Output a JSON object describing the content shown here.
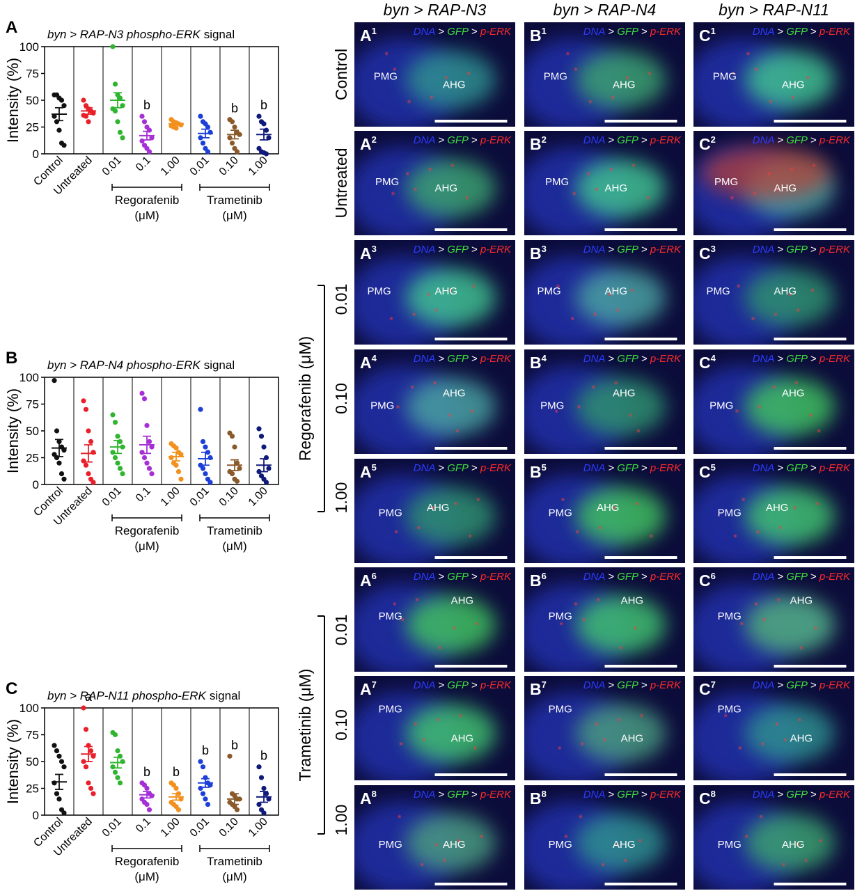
{
  "chart_data": [
    {
      "type": "dot",
      "panel": "A",
      "title": {
        "italic": "byn > RAP-N3 phospho-ERK",
        "plain": "signal"
      },
      "ylabel": "Intensity (%)",
      "categories": [
        "Control",
        "Untreated",
        "0.01",
        "0.1",
        "1.00",
        "0.01",
        "0.10",
        "1.00"
      ],
      "colors": [
        "#111111",
        "#e8202a",
        "#2fb52f",
        "#a630d6",
        "#f2911e",
        "#1c3fd8",
        "#8a5a2b",
        "#101a7a"
      ],
      "values": [
        [
          55,
          55,
          52,
          50,
          45,
          35,
          30,
          22,
          10,
          8
        ],
        [
          50,
          45,
          42,
          40,
          38,
          36,
          35,
          30
        ],
        [
          100,
          65,
          55,
          52,
          45,
          42,
          40,
          30,
          20,
          15
        ],
        [
          35,
          30,
          25,
          22,
          15,
          12,
          8,
          5,
          2
        ],
        [
          32,
          30,
          29,
          28,
          27,
          26,
          25,
          24
        ],
        [
          35,
          30,
          28,
          25,
          20,
          15,
          10,
          5,
          2
        ],
        [
          32,
          30,
          25,
          20,
          18,
          15,
          10,
          5,
          2
        ],
        [
          35,
          30,
          28,
          22,
          15,
          5,
          2,
          1,
          0
        ]
      ],
      "means": [
        37,
        40,
        50,
        17,
        28,
        19,
        18,
        18
      ],
      "sems": [
        6,
        3,
        7,
        4,
        1,
        4,
        4,
        5
      ],
      "annotations": [
        null,
        null,
        null,
        "b",
        null,
        null,
        "b",
        "b"
      ],
      "group_labels": [
        "Regorafenib",
        "Trametinib"
      ],
      "group_unit": "(μM)",
      "ylim": [
        0,
        100
      ],
      "yticks": [
        0,
        25,
        50,
        75,
        100
      ]
    },
    {
      "type": "dot",
      "panel": "B",
      "title": {
        "italic": "byn > RAP-N4 phospho-ERK",
        "plain": "signal"
      },
      "ylabel": "Intensity (%)",
      "categories": [
        "Control",
        "Untreated",
        "0.01",
        "0.1",
        "1.00",
        "0.01",
        "0.10",
        "1.00"
      ],
      "colors": [
        "#111111",
        "#e8202a",
        "#2fb52f",
        "#a630d6",
        "#f2911e",
        "#1c3fd8",
        "#8a5a2b",
        "#101a7a"
      ],
      "values": [
        [
          97,
          50,
          40,
          35,
          32,
          28,
          25,
          20,
          10,
          5
        ],
        [
          78,
          70,
          50,
          40,
          30,
          22,
          18,
          10,
          5,
          2
        ],
        [
          65,
          58,
          45,
          40,
          35,
          30,
          25,
          20,
          15,
          10
        ],
        [
          85,
          80,
          55,
          40,
          35,
          30,
          25,
          20,
          15,
          10
        ],
        [
          38,
          36,
          34,
          30,
          28,
          25,
          20,
          18,
          12,
          5
        ],
        [
          70,
          40,
          35,
          30,
          25,
          18,
          15,
          10,
          5,
          2
        ],
        [
          48,
          45,
          35,
          20,
          15,
          12,
          10,
          5,
          3
        ],
        [
          52,
          45,
          35,
          25,
          15,
          12,
          8,
          5,
          2
        ]
      ],
      "means": [
        34,
        29,
        35,
        37,
        26,
        24,
        18,
        18
      ],
      "sems": [
        8,
        8,
        6,
        8,
        4,
        6,
        5,
        6
      ],
      "annotations": [
        null,
        null,
        null,
        null,
        null,
        null,
        null,
        null
      ],
      "group_labels": [
        "Regorafenib",
        "Trametinib"
      ],
      "group_unit": "(μM)",
      "ylim": [
        0,
        100
      ],
      "yticks": [
        0,
        25,
        50,
        75,
        100
      ]
    },
    {
      "type": "dot",
      "panel": "C",
      "title": {
        "italic": "byn > RAP-N11 phospho-ERK",
        "plain": "signal"
      },
      "ylabel": "Intensity (%)",
      "categories": [
        "Control",
        "Untreated",
        "0.01",
        "0.1",
        "1.00",
        "0.01",
        "0.10",
        "1.00"
      ],
      "colors": [
        "#111111",
        "#e8202a",
        "#2fb52f",
        "#a630d6",
        "#f2911e",
        "#1c3fd8",
        "#8a5a2b",
        "#101a7a"
      ],
      "values": [
        [
          65,
          60,
          55,
          50,
          45,
          30,
          20,
          15,
          5,
          2
        ],
        [
          100,
          80,
          65,
          60,
          55,
          50,
          45,
          30,
          25,
          20
        ],
        [
          77,
          75,
          60,
          55,
          50,
          45,
          40,
          35,
          30
        ],
        [
          30,
          28,
          25,
          20,
          18,
          15,
          12,
          10,
          5
        ],
        [
          30,
          28,
          25,
          20,
          15,
          12,
          10,
          8,
          5
        ],
        [
          50,
          45,
          35,
          30,
          28,
          25,
          20,
          15,
          10
        ],
        [
          55,
          20,
          18,
          15,
          15,
          12,
          10,
          8,
          5
        ],
        [
          45,
          35,
          25,
          20,
          15,
          10,
          5,
          2
        ]
      ],
      "means": [
        31,
        57,
        49,
        19,
        17,
        30,
        15,
        17
      ],
      "sems": [
        7,
        7,
        5,
        3,
        3,
        4,
        5,
        5
      ],
      "annotations": [
        null,
        "a",
        null,
        "b",
        "b",
        "b",
        "b",
        "b"
      ],
      "group_labels": [
        "Regorafenib",
        "Trametinib"
      ],
      "group_unit": "(μM)",
      "ylim": [
        0,
        100
      ],
      "yticks": [
        0,
        25,
        50,
        75,
        100
      ]
    }
  ],
  "column_headers": [
    "byn > RAP-N3",
    "byn > RAP-N4",
    "byn > RAP-N11"
  ],
  "row_labels": [
    "Control",
    "Untreated"
  ],
  "regorafenib": {
    "label": "Regorafenib (μM)",
    "doses": [
      "0.01",
      "0.10",
      "1.00"
    ]
  },
  "trametinib": {
    "label": "Trametinib (μM)",
    "doses": [
      "0.01",
      "0.10",
      "1.00"
    ]
  },
  "channel_legend": {
    "dna": "DNA",
    "sep": ">",
    "gfp": "GFP",
    "perk": "p-ERK"
  },
  "panels": [
    [
      {
        "id": "A",
        "sup": "1",
        "labels": [
          "PMG",
          "AHG"
        ]
      },
      {
        "id": "B",
        "sup": "1",
        "labels": [
          "PMG",
          "AHG"
        ]
      },
      {
        "id": "C",
        "sup": "1",
        "labels": [
          "PMG",
          "AHG"
        ]
      }
    ],
    [
      {
        "id": "A",
        "sup": "2",
        "labels": [
          "PMG",
          "AHG"
        ]
      },
      {
        "id": "B",
        "sup": "2",
        "labels": [
          "PMG",
          "AHG"
        ]
      },
      {
        "id": "C",
        "sup": "2",
        "labels": [
          "PMG",
          "AHG"
        ]
      }
    ],
    [
      {
        "id": "A",
        "sup": "3",
        "labels": [
          "PMG",
          "AHG"
        ]
      },
      {
        "id": "B",
        "sup": "3",
        "labels": [
          "PMG",
          "AHG"
        ]
      },
      {
        "id": "C",
        "sup": "3",
        "labels": [
          "PMG",
          "AHG"
        ]
      }
    ],
    [
      {
        "id": "A",
        "sup": "4",
        "labels": [
          "PMG",
          "AHG"
        ]
      },
      {
        "id": "B",
        "sup": "4",
        "labels": [
          "PMG",
          "AHG"
        ]
      },
      {
        "id": "C",
        "sup": "4",
        "labels": [
          "PMG",
          "AHG"
        ]
      }
    ],
    [
      {
        "id": "A",
        "sup": "5",
        "labels": [
          "PMG",
          "AHG"
        ]
      },
      {
        "id": "B",
        "sup": "5",
        "labels": [
          "PMG",
          "AHG"
        ]
      },
      {
        "id": "C",
        "sup": "5",
        "labels": [
          "PMG",
          "AHG"
        ]
      }
    ],
    [
      {
        "id": "A",
        "sup": "6",
        "labels": [
          "PMG",
          "AHG"
        ]
      },
      {
        "id": "B",
        "sup": "6",
        "labels": [
          "PMG",
          "AHG"
        ]
      },
      {
        "id": "C",
        "sup": "6",
        "labels": [
          "PMG",
          "AHG"
        ]
      }
    ],
    [
      {
        "id": "A",
        "sup": "7",
        "labels": [
          "PMG",
          "AHG"
        ]
      },
      {
        "id": "B",
        "sup": "7",
        "labels": [
          "PMG",
          "AHG"
        ]
      },
      {
        "id": "C",
        "sup": "7",
        "labels": [
          "PMG",
          "AHG"
        ]
      }
    ],
    [
      {
        "id": "A",
        "sup": "8",
        "labels": [
          "PMG",
          "AHG"
        ]
      },
      {
        "id": "B",
        "sup": "8",
        "labels": [
          "PMG",
          "AHG"
        ]
      },
      {
        "id": "C",
        "sup": "8",
        "labels": [
          "PMG",
          "AHG"
        ]
      }
    ]
  ]
}
